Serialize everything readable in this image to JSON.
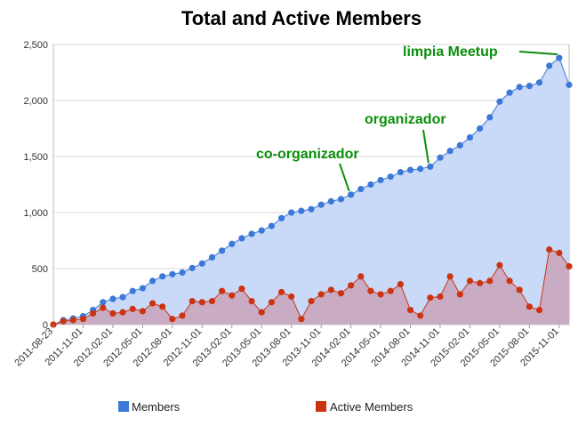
{
  "chart_data": {
    "type": "area",
    "title": "Total and Active Members",
    "xlabel": "",
    "ylabel": "",
    "ylim": [
      0,
      2500
    ],
    "yticks": [
      0,
      500,
      1000,
      1500,
      2000,
      2500
    ],
    "ytick_labels": [
      "0",
      "500",
      "1,000",
      "1,500",
      "2,000",
      "2,500"
    ],
    "xtick_labels": [
      "2011-08-23",
      "2011-11-01",
      "2012-02-01",
      "2012-05-01",
      "2012-08-01",
      "2012-11-01",
      "2013-02-01",
      "2013-05-01",
      "2013-08-01",
      "2013-11-01",
      "2014-02-01",
      "2014-05-01",
      "2014-08-01",
      "2014-11-01",
      "2015-02-01",
      "2015-05-01",
      "2015-08-01",
      "2015-11-01"
    ],
    "xtick_index": [
      0,
      3,
      6,
      9,
      12,
      15,
      18,
      21,
      24,
      27,
      30,
      33,
      36,
      39,
      42,
      45,
      48,
      51
    ],
    "grid": true,
    "series": [
      {
        "name": "Members",
        "color": "#3c78d8",
        "fill": "#c9daf8",
        "values": [
          0,
          40,
          55,
          75,
          130,
          200,
          230,
          245,
          300,
          325,
          390,
          430,
          450,
          465,
          505,
          545,
          600,
          660,
          720,
          770,
          810,
          840,
          880,
          950,
          1000,
          1015,
          1030,
          1070,
          1100,
          1120,
          1160,
          1210,
          1250,
          1290,
          1320,
          1360,
          1380,
          1390,
          1410,
          1490,
          1550,
          1600,
          1670,
          1750,
          1850,
          1990,
          2070,
          2120,
          2130,
          2160,
          2310,
          2380,
          2140
        ]
      },
      {
        "name": "Active Members",
        "color": "#cc3311",
        "fill": "#c9a3bb",
        "values": [
          0,
          30,
          40,
          50,
          100,
          150,
          100,
          110,
          140,
          120,
          190,
          160,
          50,
          80,
          210,
          200,
          210,
          300,
          260,
          320,
          210,
          110,
          200,
          290,
          250,
          50,
          210,
          270,
          310,
          280,
          350,
          430,
          300,
          270,
          300,
          360,
          130,
          80,
          240,
          250,
          430,
          270,
          390,
          370,
          390,
          530,
          390,
          310,
          160,
          130,
          670,
          640,
          520
        ]
      }
    ],
    "annotations": [
      {
        "text": "limpia Meetup",
        "index": 51
      },
      {
        "text": "organizador",
        "index": 38
      },
      {
        "text": "co-organizador",
        "index": 30
      }
    ],
    "legend": "bottom"
  }
}
